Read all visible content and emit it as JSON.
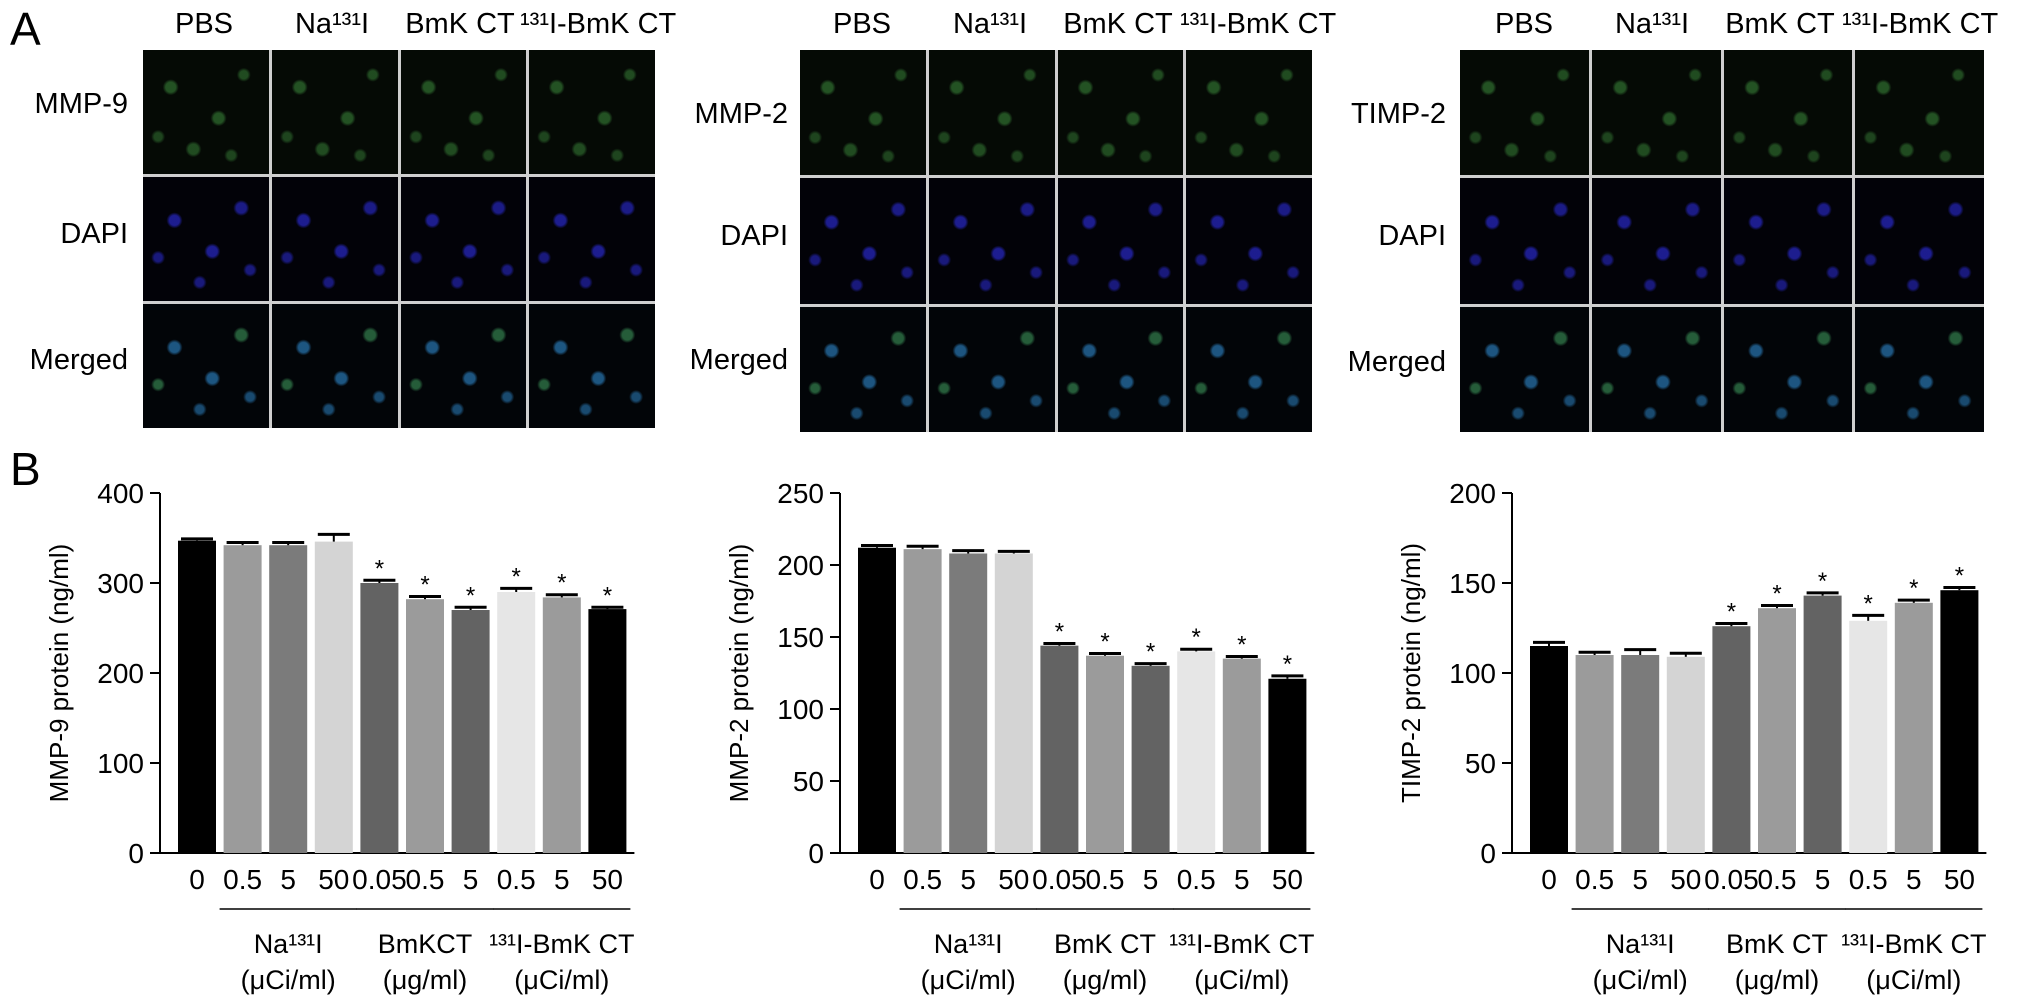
{
  "panels": {
    "a": "A",
    "b": "B"
  },
  "micrographs": [
    {
      "columns": [
        "PBS",
        "Na¹³¹I",
        "BmK CT",
        "¹³¹I-BmK CT"
      ],
      "rows": [
        "MMP-9",
        "DAPI",
        "Merged"
      ]
    },
    {
      "columns": [
        "PBS",
        "Na¹³¹I",
        "BmK CT",
        "¹³¹I-BmK CT"
      ],
      "rows": [
        "MMP-2",
        "DAPI",
        "Merged"
      ]
    },
    {
      "columns": [
        "PBS",
        "Na¹³¹I",
        "BmK CT",
        "¹³¹I-BmK CT"
      ],
      "rows": [
        "TIMP-2",
        "DAPI",
        "Merged"
      ]
    }
  ],
  "chart_data": [
    {
      "type": "bar",
      "ylabel": "MMP-9 protein (ng/ml)",
      "ylim": [
        0,
        400
      ],
      "yticks": [
        0,
        100,
        200,
        300,
        400
      ],
      "categories": [
        "0",
        "0.5",
        "5",
        "50",
        "0.05",
        "0.5",
        "5",
        "0.5",
        "5",
        "50"
      ],
      "values": [
        347,
        342,
        342,
        346,
        300,
        282,
        270,
        290,
        284,
        271
      ],
      "errors": [
        2,
        3,
        3,
        8,
        3,
        3,
        3,
        4,
        3,
        2
      ],
      "significant": [
        false,
        false,
        false,
        false,
        true,
        true,
        true,
        true,
        true,
        true
      ],
      "colors": [
        "#000000",
        "#9b9b9b",
        "#7b7b7b",
        "#d4d4d4",
        "#636363",
        "#9b9b9b",
        "#636363",
        "#e6e6e6",
        "#9b9b9b",
        "#000000"
      ],
      "groups": [
        {
          "label": "Na¹³¹I",
          "unit": "(μCi/ml)",
          "from": 1,
          "to": 3
        },
        {
          "label": "BmKCT",
          "unit": "(μg/ml)",
          "from": 4,
          "to": 6
        },
        {
          "label": "¹³¹I-BmK CT",
          "unit": "(μCi/ml)",
          "from": 7,
          "to": 9
        }
      ],
      "marker": "*"
    },
    {
      "type": "bar",
      "ylabel": "MMP-2 protein (ng/ml)",
      "ylim": [
        0,
        250
      ],
      "yticks": [
        0,
        50,
        100,
        150,
        200,
        250
      ],
      "categories": [
        "0",
        "0.5",
        "5",
        "50",
        "0.05",
        "0.5",
        "5",
        "0.5",
        "5",
        "50"
      ],
      "values": [
        212,
        211,
        208,
        208,
        144,
        137,
        130,
        140,
        135,
        121
      ],
      "errors": [
        1.5,
        2,
        2,
        1.5,
        1.5,
        1.5,
        1.5,
        1.5,
        1.5,
        2
      ],
      "significant": [
        false,
        false,
        false,
        false,
        true,
        true,
        true,
        true,
        true,
        true
      ],
      "colors": [
        "#000000",
        "#9b9b9b",
        "#7b7b7b",
        "#d4d4d4",
        "#636363",
        "#9b9b9b",
        "#636363",
        "#e6e6e6",
        "#9b9b9b",
        "#000000"
      ],
      "groups": [
        {
          "label": "Na¹³¹I",
          "unit": "(μCi/ml)",
          "from": 1,
          "to": 3
        },
        {
          "label": "BmK CT",
          "unit": "(μg/ml)",
          "from": 4,
          "to": 6
        },
        {
          "label": "¹³¹I-BmK CT",
          "unit": "(μCi/ml)",
          "from": 7,
          "to": 9
        }
      ],
      "marker": "*"
    },
    {
      "type": "bar",
      "ylabel": "TIMP-2 protein (ng/ml)",
      "ylim": [
        0,
        200
      ],
      "yticks": [
        0,
        50,
        100,
        150,
        200
      ],
      "categories": [
        "0",
        "0.5",
        "5",
        "50",
        "0.05",
        "0.5",
        "5",
        "0.5",
        "5",
        "50"
      ],
      "values": [
        115,
        110,
        110,
        109,
        126,
        136,
        143,
        129,
        139,
        146
      ],
      "errors": [
        2,
        1.5,
        3,
        2,
        1.5,
        1.5,
        1.5,
        3,
        1.5,
        1.5
      ],
      "significant": [
        false,
        false,
        false,
        false,
        true,
        true,
        true,
        true,
        true,
        true
      ],
      "colors": [
        "#000000",
        "#9b9b9b",
        "#7b7b7b",
        "#d4d4d4",
        "#636363",
        "#9b9b9b",
        "#636363",
        "#e6e6e6",
        "#9b9b9b",
        "#000000"
      ],
      "groups": [
        {
          "label": "Na¹³¹I",
          "unit": "(μCi/ml)",
          "from": 1,
          "to": 3
        },
        {
          "label": "BmK CT",
          "unit": "(μg/ml)",
          "from": 4,
          "to": 6
        },
        {
          "label": "¹³¹I-BmK CT",
          "unit": "(μCi/ml)",
          "from": 7,
          "to": 9
        }
      ],
      "marker": "*"
    }
  ]
}
